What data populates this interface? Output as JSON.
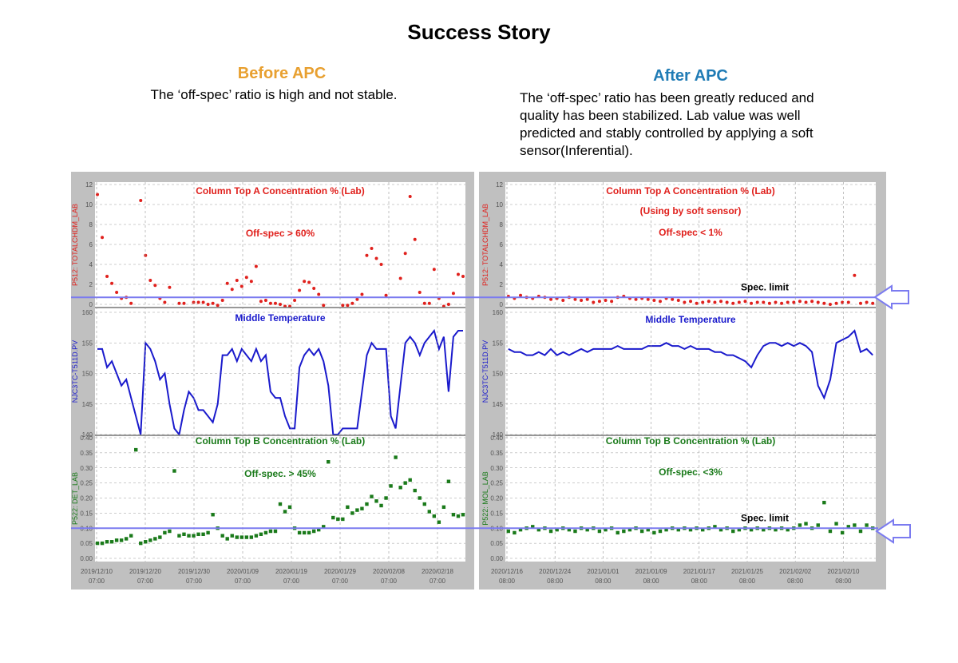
{
  "title": "Success Story",
  "before": {
    "heading": "Before APC",
    "text": "The ‘off-spec’ ratio is high and not stable."
  },
  "after": {
    "heading": "After APC",
    "text_lines": [
      "The ‘off-spec’ ratio has been greatly reduced and",
      "quality has been stabilized. Lab value was well",
      "predicted and stably controlled by applying a soft",
      "sensor(Inferential)."
    ]
  },
  "chart_data": [
    {
      "type": "scatter",
      "marker": "circle",
      "color": "#e0201c",
      "ylabel": "P512: TOTALCHDM_LAB",
      "annotations": [
        "Column Top A Concentration % (Lab)",
        "Off-spec > 60%"
      ],
      "ylim": [
        0,
        12
      ],
      "yticks": [
        0,
        2,
        4,
        6,
        8,
        10,
        12
      ],
      "grid": true,
      "spec_limit": 0.7,
      "values": [
        11,
        6.7,
        2.8,
        2.1,
        1.2,
        0.6,
        0.7,
        0.1,
        null,
        10.4,
        4.9,
        2.4,
        1.9,
        0.6,
        0.2,
        1.7,
        null,
        0.1,
        0.1,
        null,
        0.2,
        0.2,
        0.2,
        0,
        0.1,
        -0.1,
        0.4,
        2.1,
        1.5,
        2.4,
        1.8,
        2.7,
        2.3,
        3.8,
        0.3,
        0.4,
        0.1,
        0.1,
        0,
        -0.2,
        -0.2,
        0.4,
        1.4,
        2.3,
        2.2,
        1.6,
        1,
        -0.1,
        null,
        null,
        null,
        -0.1,
        -0.1,
        0.1,
        0.5,
        1,
        4.9,
        5.6,
        4.6,
        4,
        0.9,
        null,
        null,
        2.6,
        5.1,
        10.8,
        6.5,
        1.2,
        0.1,
        0.1,
        3.5,
        0.6,
        -0.2,
        0,
        1.1,
        3,
        2.8
      ]
    },
    {
      "type": "line",
      "color": "#1a1acc",
      "ylabel": "NJC3TC-T511D.PV",
      "annotations": [
        "Middle Temperature"
      ],
      "ylim": [
        140,
        160
      ],
      "yticks": [
        140,
        145,
        150,
        155,
        160
      ],
      "grid": true,
      "values": [
        154,
        154,
        151,
        152,
        150,
        148,
        149,
        146,
        143,
        140,
        155,
        154,
        152,
        149,
        150,
        145,
        141,
        140,
        144,
        147,
        146,
        144,
        144,
        143,
        142,
        145,
        153,
        153,
        154,
        152,
        154,
        153,
        152,
        154,
        152,
        153,
        147,
        146,
        146,
        143,
        141,
        141,
        151,
        153,
        154,
        153,
        154,
        152,
        148,
        140,
        140,
        141,
        141,
        141,
        141,
        147,
        153,
        155,
        154,
        154,
        154,
        143,
        141,
        148,
        155,
        156,
        155,
        153,
        155,
        156,
        157,
        154,
        156,
        147,
        156,
        157,
        157
      ]
    },
    {
      "type": "scatter",
      "marker": "square",
      "color": "#1a7a1a",
      "ylabel": "P522: DET_LAB",
      "annotations": [
        "Column Top B Concentration % (Lab)",
        "Off-spec. > 45%"
      ],
      "ylim": [
        0,
        0.4
      ],
      "yticks": [
        {
          "value": 0,
          "label": "0.00"
        },
        {
          "value": 0.05,
          "label": "0.05"
        },
        {
          "value": 0.1,
          "label": "0.10"
        },
        {
          "value": 0.15,
          "label": "0.15"
        },
        {
          "value": 0.2,
          "label": "0.20"
        },
        {
          "value": 0.25,
          "label": "0.25"
        },
        {
          "value": 0.3,
          "label": "0.30"
        },
        {
          "value": 0.35,
          "label": "0.35"
        },
        {
          "value": 0.4,
          "label": "0.40"
        }
      ],
      "grid": true,
      "spec_limit": 0.1,
      "values": [
        0.05,
        0.05,
        0.055,
        0.055,
        0.06,
        0.06,
        0.065,
        0.075,
        0.36,
        0.05,
        0.055,
        0.06,
        0.065,
        0.07,
        0.085,
        0.09,
        0.29,
        0.075,
        0.08,
        0.075,
        0.075,
        0.08,
        0.08,
        0.085,
        0.145,
        0.1,
        0.075,
        0.065,
        0.075,
        0.07,
        0.07,
        0.07,
        0.07,
        0.075,
        0.08,
        0.085,
        0.09,
        0.09,
        0.18,
        0.155,
        0.17,
        0.1,
        0.085,
        0.085,
        0.085,
        0.09,
        0.095,
        0.105,
        0.32,
        0.135,
        0.13,
        0.13,
        0.17,
        0.15,
        0.16,
        0.165,
        0.18,
        0.205,
        0.19,
        0.175,
        0.2,
        0.24,
        0.335,
        0.235,
        0.25,
        0.26,
        0.225,
        0.2,
        0.18,
        0.155,
        0.14,
        0.12,
        0.17,
        0.255,
        0.145,
        0.14,
        0.145
      ],
      "x_labels": [
        {
          "date": "2019/12/10",
          "time": "07:00"
        },
        {
          "date": "2019/12/20",
          "time": "07:00"
        },
        {
          "date": "2019/12/30",
          "time": "07:00"
        },
        {
          "date": "2020/01/09",
          "time": "07:00"
        },
        {
          "date": "2020/01/19",
          "time": "07:00"
        },
        {
          "date": "2020/01/29",
          "time": "07:00"
        },
        {
          "date": "2020/02/08",
          "time": "07:00"
        },
        {
          "date": "2020/02/18",
          "time": "07:00"
        }
      ]
    },
    {
      "type": "scatter",
      "marker": "circle",
      "color": "#e0201c",
      "ylabel": "P512: TOTALCHDM_LAB",
      "annotations": [
        "Column Top A Concentration % (Lab)",
        "(Using by soft sensor)",
        "Off-spec < 1%"
      ],
      "ylim": [
        0,
        12
      ],
      "yticks": [
        0,
        2,
        4,
        6,
        8,
        10,
        12
      ],
      "grid": true,
      "spec_limit": 0.7,
      "spec_label": "Spec. limit",
      "values": [
        0.8,
        0.6,
        0.9,
        0.7,
        0.6,
        0.8,
        0.7,
        0.5,
        0.6,
        0.4,
        0.7,
        0.5,
        0.4,
        0.5,
        0.2,
        0.3,
        0.4,
        0.3,
        0.7,
        0.8,
        0.6,
        0.5,
        0.6,
        0.5,
        0.4,
        0.3,
        0.6,
        0.5,
        0.4,
        0.2,
        0.3,
        0.1,
        0.2,
        0.3,
        0.2,
        0.3,
        0.2,
        0.1,
        0.2,
        0.3,
        0.1,
        0.2,
        0.2,
        0.1,
        0.2,
        0.1,
        0.2,
        0.2,
        0.3,
        0.2,
        0.3,
        0.2,
        0.1,
        0,
        0.1,
        0.2,
        0.2,
        2.9,
        0.1,
        0.2,
        0.1
      ]
    },
    {
      "type": "line",
      "color": "#1a1acc",
      "ylabel": "NJC3TC-T511D.PV",
      "annotations": [
        "Middle Temperature"
      ],
      "ylim": [
        140,
        160
      ],
      "yticks": [
        140,
        145,
        150,
        155,
        160
      ],
      "grid": true,
      "values": [
        154,
        153.5,
        153.5,
        153,
        153,
        153.5,
        153,
        154,
        153,
        153.5,
        153,
        153.5,
        154,
        153.5,
        154,
        154,
        154,
        154,
        154.5,
        154,
        154,
        154,
        154,
        154.5,
        154.5,
        154.5,
        155,
        154.5,
        154.5,
        154,
        154.5,
        154,
        154,
        154,
        153.5,
        153.5,
        153,
        153,
        152.5,
        152,
        151,
        153,
        154.5,
        155,
        155,
        154.5,
        155,
        154.5,
        155,
        154.5,
        153.5,
        148,
        146,
        149,
        155,
        155.5,
        156,
        157,
        153.5,
        154,
        153
      ]
    },
    {
      "type": "scatter",
      "marker": "square",
      "color": "#1a7a1a",
      "ylabel": "P522: MOL_LAB",
      "annotations": [
        "Column Top B Concentration % (Lab)",
        "Off-spec. <3%"
      ],
      "ylim": [
        0,
        0.4
      ],
      "yticks": [
        {
          "value": 0,
          "label": "0.00"
        },
        {
          "value": 0.05,
          "label": "0.05"
        },
        {
          "value": 0.1,
          "label": "0.10"
        },
        {
          "value": 0.15,
          "label": "0.15"
        },
        {
          "value": 0.2,
          "label": "0.20"
        },
        {
          "value": 0.25,
          "label": "0.25"
        },
        {
          "value": 0.3,
          "label": "0.30"
        },
        {
          "value": 0.35,
          "label": "0.35"
        },
        {
          "value": 0.4,
          "label": "0.40"
        }
      ],
      "grid": true,
      "spec_limit": 0.1,
      "spec_label": "Spec. limit",
      "values": [
        0.09,
        0.085,
        0.095,
        0.1,
        0.105,
        0.095,
        0.1,
        0.09,
        0.095,
        0.1,
        0.095,
        0.09,
        0.1,
        0.095,
        0.1,
        0.09,
        0.095,
        0.1,
        0.085,
        0.09,
        0.095,
        0.1,
        0.09,
        0.095,
        0.085,
        0.09,
        0.095,
        0.1,
        0.095,
        0.1,
        0.095,
        0.1,
        0.095,
        0.1,
        0.105,
        0.095,
        0.1,
        0.09,
        0.095,
        0.1,
        0.095,
        0.1,
        0.095,
        0.1,
        0.095,
        0.1,
        0.095,
        0.1,
        0.11,
        0.115,
        0.1,
        0.11,
        0.185,
        0.09,
        0.115,
        0.085,
        0.105,
        0.11,
        0.09,
        0.11,
        0.1
      ],
      "x_labels": [
        {
          "date": "2020/12/16",
          "time": "08:00"
        },
        {
          "date": "2020/12/24",
          "time": "08:00"
        },
        {
          "date": "2021/01/01",
          "time": "08:00"
        },
        {
          "date": "2021/01/09",
          "time": "08:00"
        },
        {
          "date": "2021/01/17",
          "time": "08:00"
        },
        {
          "date": "2021/01/25",
          "time": "08:00"
        },
        {
          "date": "2021/02/02",
          "time": "08:00"
        },
        {
          "date": "2021/02/10",
          "time": "08:00"
        }
      ]
    }
  ]
}
